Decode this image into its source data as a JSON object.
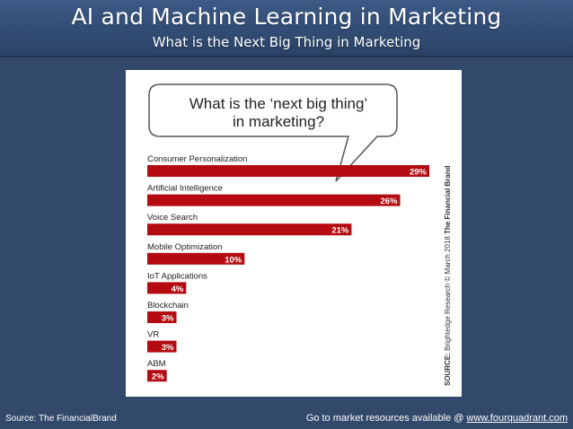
{
  "header": {
    "title": "AI and Machine Learning in Marketing",
    "subtitle": "What is the Next Big Thing in Marketing"
  },
  "bubble": {
    "line1": "What is the ‘next big thing’",
    "line2": "in marketing?"
  },
  "side_source": {
    "bold": "SOURCE:",
    "text": " Brightedge Research © March 2018 ",
    "bold2": "The Financial Brand"
  },
  "footer": {
    "source": "Source: The FinancialBrand",
    "cta_prefix": "Go to market resources available @ ",
    "link": "www.fourquadrant.com"
  },
  "colors": {
    "bar": "#b30b10",
    "label": "#222222",
    "value_text": "#ffffff"
  },
  "chart_data": {
    "type": "bar",
    "orientation": "horizontal",
    "categories": [
      "Consumer Personalization",
      "Artificial Intelligence",
      "Voice Search",
      "Mobile Optimization",
      "IoT Applications",
      "Blockchain",
      "VR",
      "ABM"
    ],
    "values": [
      29,
      26,
      21,
      10,
      4,
      3,
      3,
      2
    ],
    "value_labels": [
      "29%",
      "26%",
      "21%",
      "10%",
      "4%",
      "3%",
      "3%",
      "2%"
    ],
    "title": "What is the ‘next big thing’ in marketing?",
    "unit": "%",
    "xlim": [
      0,
      29
    ],
    "grid": false,
    "legend": "none"
  }
}
